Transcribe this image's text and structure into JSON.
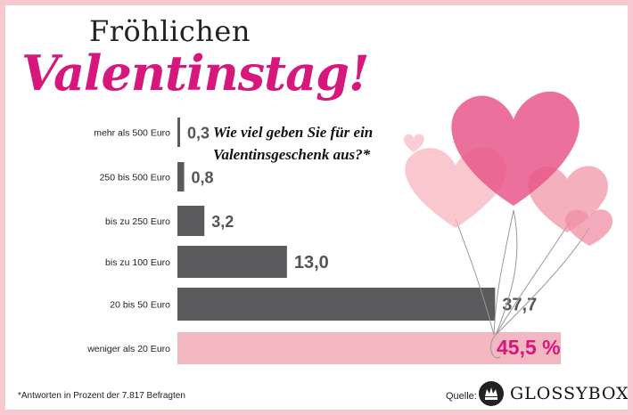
{
  "header": {
    "title_line1": "Fröhlichen",
    "title_line2": "Valentinstag!"
  },
  "question": {
    "line1": "Wie viel geben Sie für ein",
    "line2": "Valentinsgeschenk aus?*"
  },
  "footer": {
    "footnote": "*Antworten in Prozent der 7.817 Befragten",
    "source_label": "Quelle:",
    "brand": "GLOSSYBOX"
  },
  "colors": {
    "bar": "#5b5b5e",
    "highlight_bar": "#f2b7c0",
    "highlight_text": "#d6177b",
    "value_text": "#555558",
    "background": "#f6c9d1"
  },
  "chart_data": {
    "type": "bar",
    "orientation": "horizontal",
    "categories": [
      "mehr als 500 Euro",
      "250 bis 500 Euro",
      "bis zu 250 Euro",
      "bis zu 100 Euro",
      "20 bis 50 Euro",
      "weniger als 20 Euro"
    ],
    "values": [
      0.3,
      0.8,
      3.2,
      13.0,
      37.7,
      45.5
    ],
    "value_labels": [
      "0,3",
      "0,8",
      "3,2",
      "13,0",
      "37,7",
      "45,5 %"
    ],
    "highlight_index": 5
  }
}
